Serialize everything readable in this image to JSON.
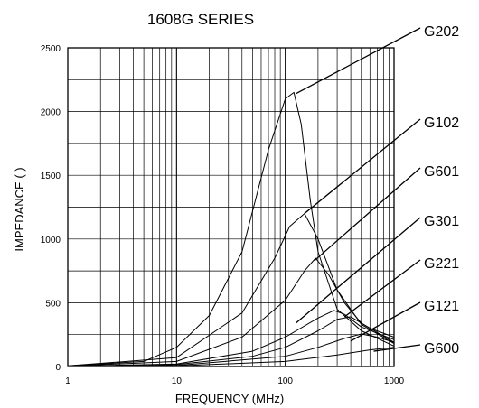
{
  "chart_data": {
    "type": "line",
    "title": "1608G SERIES",
    "xlabel": "FREQUENCY (MHz)",
    "ylabel": "IMPEDANCE (  )",
    "x_scale": "log",
    "xlim": [
      1,
      1000
    ],
    "ylim": [
      0,
      2500
    ],
    "x_ticks": [
      "1",
      "10",
      "100",
      "1000"
    ],
    "y_ticks": [
      "0",
      "500",
      "1000",
      "1500",
      "2000",
      "2500"
    ],
    "grid": true,
    "series": [
      {
        "name": "G202",
        "x": [
          1,
          5,
          10,
          20,
          40,
          70,
          100,
          120,
          140,
          170,
          200,
          300,
          500,
          1000
        ],
        "y": [
          5,
          40,
          150,
          400,
          900,
          1700,
          2100,
          2150,
          1900,
          1300,
          900,
          450,
          280,
          160
        ]
      },
      {
        "name": "G102",
        "x": [
          1,
          10,
          40,
          80,
          110,
          150,
          200,
          300,
          500,
          1000
        ],
        "y": [
          5,
          70,
          420,
          850,
          1100,
          1200,
          1000,
          600,
          330,
          180
        ]
      },
      {
        "name": "G601",
        "x": [
          1,
          10,
          40,
          100,
          150,
          190,
          250,
          350,
          500,
          1000
        ],
        "y": [
          3,
          40,
          230,
          520,
          750,
          850,
          720,
          500,
          340,
          190
        ]
      },
      {
        "name": "G301",
        "x": [
          1,
          10,
          50,
          100,
          200,
          280,
          350,
          500,
          1000
        ],
        "y": [
          2,
          20,
          120,
          230,
          380,
          440,
          410,
          310,
          210
        ]
      },
      {
        "name": "G221",
        "x": [
          1,
          10,
          50,
          100,
          200,
          300,
          400,
          600,
          1000
        ],
        "y": [
          2,
          15,
          80,
          150,
          280,
          370,
          390,
          300,
          230
        ]
      },
      {
        "name": "G121",
        "x": [
          1,
          10,
          100,
          200,
          350,
          500,
          700,
          1000
        ],
        "y": [
          1,
          8,
          80,
          150,
          220,
          255,
          230,
          190
        ]
      },
      {
        "name": "G600",
        "x": [
          1,
          10,
          100,
          300,
          600,
          1000
        ],
        "y": [
          1,
          4,
          40,
          90,
          130,
          150
        ]
      }
    ],
    "annotations": [
      {
        "label": "G202",
        "x": 125,
        "y": 2140
      },
      {
        "label": "G102",
        "x": 150,
        "y": 1200
      },
      {
        "label": "G601",
        "x": 185,
        "y": 830
      },
      {
        "label": "G301",
        "x": 125,
        "y": 340
      },
      {
        "label": "G221",
        "x": 350,
        "y": 390
      },
      {
        "label": "G121",
        "x": 400,
        "y": 200
      },
      {
        "label": "G600",
        "x": 650,
        "y": 120
      }
    ]
  }
}
